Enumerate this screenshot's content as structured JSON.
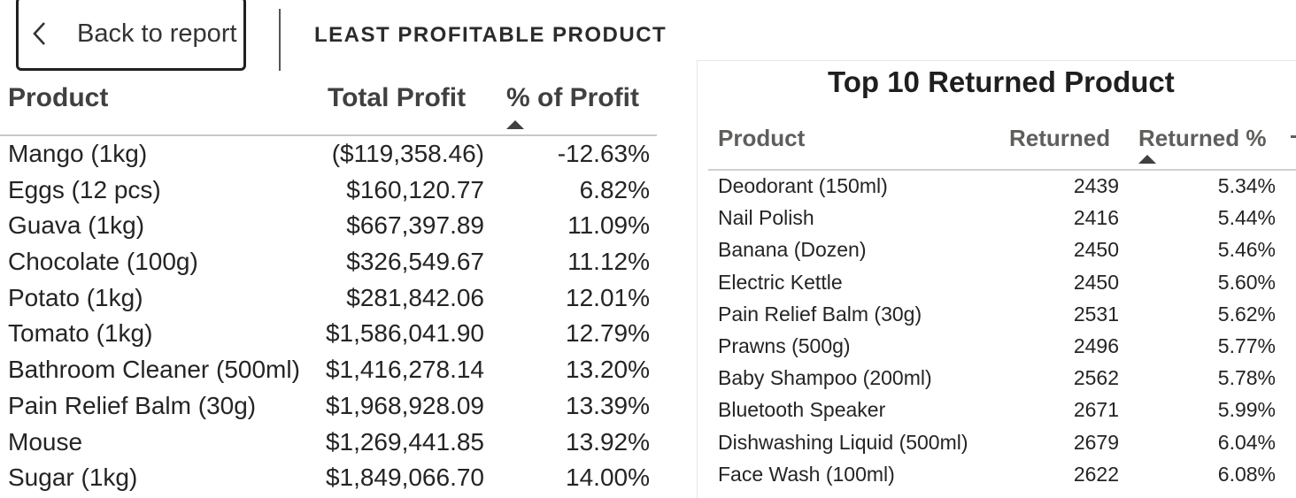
{
  "header": {
    "back_label": "Back to report",
    "back_icon": "chevron-left-icon",
    "page_title": "LEAST PROFITABLE PRODUCT"
  },
  "profit_table": {
    "columns": [
      "Product",
      "Total Profit",
      "% of Profit"
    ],
    "sort_column": "% of Profit",
    "sort_direction": "ascending",
    "rows": [
      {
        "product": "Mango (1kg)",
        "total_profit": "($119,358.46)",
        "pct_profit": "-12.63%"
      },
      {
        "product": "Eggs (12 pcs)",
        "total_profit": "$160,120.77",
        "pct_profit": "6.82%"
      },
      {
        "product": "Guava (1kg)",
        "total_profit": "$667,397.89",
        "pct_profit": "11.09%"
      },
      {
        "product": "Chocolate (100g)",
        "total_profit": "$326,549.67",
        "pct_profit": "11.12%"
      },
      {
        "product": "Potato (1kg)",
        "total_profit": "$281,842.06",
        "pct_profit": "12.01%"
      },
      {
        "product": "Tomato (1kg)",
        "total_profit": "$1,586,041.90",
        "pct_profit": "12.79%"
      },
      {
        "product": "Bathroom Cleaner (500ml)",
        "total_profit": "$1,416,278.14",
        "pct_profit": "13.20%"
      },
      {
        "product": "Pain Relief Balm (30g)",
        "total_profit": "$1,968,928.09",
        "pct_profit": "13.39%"
      },
      {
        "product": "Mouse",
        "total_profit": "$1,269,441.85",
        "pct_profit": "13.92%"
      },
      {
        "product": "Sugar (1kg)",
        "total_profit": "$1,849,066.70",
        "pct_profit": "14.00%"
      }
    ]
  },
  "returns_table": {
    "title": "Top 10 Returned Product",
    "columns": [
      "Product",
      "Returned",
      "Returned %"
    ],
    "sort_column": "Returned %",
    "sort_direction": "ascending",
    "rows": [
      {
        "product": "Deodorant (150ml)",
        "returned": "2439",
        "returned_pct": "5.34%"
      },
      {
        "product": "Nail Polish",
        "returned": "2416",
        "returned_pct": "5.44%"
      },
      {
        "product": "Banana (Dozen)",
        "returned": "2450",
        "returned_pct": "5.46%"
      },
      {
        "product": "Electric Kettle",
        "returned": "2450",
        "returned_pct": "5.60%"
      },
      {
        "product": "Pain Relief Balm (30g)",
        "returned": "2531",
        "returned_pct": "5.62%"
      },
      {
        "product": "Prawns (500g)",
        "returned": "2496",
        "returned_pct": "5.77%"
      },
      {
        "product": "Baby Shampoo (200ml)",
        "returned": "2562",
        "returned_pct": "5.78%"
      },
      {
        "product": "Bluetooth Speaker",
        "returned": "2671",
        "returned_pct": "5.99%"
      },
      {
        "product": "Dishwashing Liquid (500ml)",
        "returned": "2679",
        "returned_pct": "6.04%"
      },
      {
        "product": "Face Wash (100ml)",
        "returned": "2622",
        "returned_pct": "6.08%"
      }
    ]
  }
}
